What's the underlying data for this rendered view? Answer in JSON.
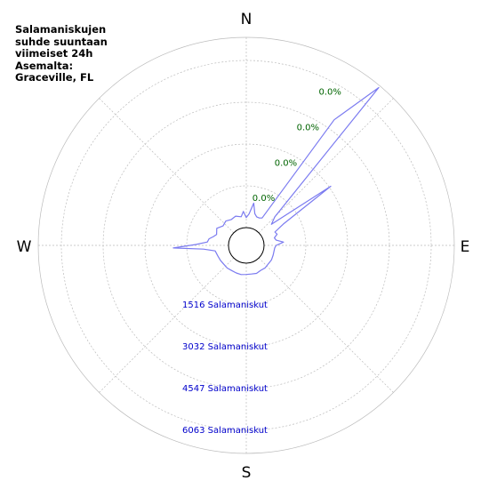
{
  "title": "Salamaniskujen\nsuhde suuntaan\nviimeiset 24h\nAsemalta:\nGraceville, FL",
  "colors": {
    "rose": "#7b7bf0",
    "percent_labels": "#006400",
    "count_labels": "#0000cc",
    "grid": "#bbbbbb"
  },
  "chart_data": {
    "type": "polar-area",
    "directions": [
      "N",
      "E",
      "S",
      "W"
    ],
    "ring_counts": [
      "1516 Salamaniskut",
      "3032 Salamaniskut",
      "4547 Salamaniskut",
      "6063 Salamaniskut"
    ],
    "ring_percents": [
      "0.0%",
      "0.0%",
      "0.0%",
      "0.0%"
    ],
    "r_max": 7579,
    "grid": true,
    "series": [
      {
        "points": [
          {
            "bearing": 0,
            "count": 400
          },
          {
            "bearing": 5,
            "count": 550
          },
          {
            "bearing": 10,
            "count": 1000
          },
          {
            "bearing": 15,
            "count": 600
          },
          {
            "bearing": 20,
            "count": 500
          },
          {
            "bearing": 25,
            "count": 500
          },
          {
            "bearing": 30,
            "count": 550
          },
          {
            "bearing": 35,
            "count": 5400
          },
          {
            "bearing": 40,
            "count": 7500
          },
          {
            "bearing": 45,
            "count": 900
          },
          {
            "bearing": 50,
            "count": 600
          },
          {
            "bearing": 55,
            "count": 3400
          },
          {
            "bearing": 60,
            "count": 1000
          },
          {
            "bearing": 65,
            "count": 550
          },
          {
            "bearing": 70,
            "count": 600
          },
          {
            "bearing": 75,
            "count": 450
          },
          {
            "bearing": 80,
            "count": 500
          },
          {
            "bearing": 85,
            "count": 780
          },
          {
            "bearing": 90,
            "count": 480
          },
          {
            "bearing": 95,
            "count": 430
          },
          {
            "bearing": 100,
            "count": 420
          },
          {
            "bearing": 110,
            "count": 430
          },
          {
            "bearing": 120,
            "count": 450
          },
          {
            "bearing": 130,
            "count": 440
          },
          {
            "bearing": 140,
            "count": 460
          },
          {
            "bearing": 150,
            "count": 440
          },
          {
            "bearing": 160,
            "count": 480
          },
          {
            "bearing": 170,
            "count": 450
          },
          {
            "bearing": 180,
            "count": 450
          },
          {
            "bearing": 190,
            "count": 470
          },
          {
            "bearing": 200,
            "count": 460
          },
          {
            "bearing": 210,
            "count": 450
          },
          {
            "bearing": 220,
            "count": 470
          },
          {
            "bearing": 230,
            "count": 460
          },
          {
            "bearing": 240,
            "count": 480
          },
          {
            "bearing": 250,
            "count": 500
          },
          {
            "bearing": 260,
            "count": 550
          },
          {
            "bearing": 265,
            "count": 1000
          },
          {
            "bearing": 268,
            "count": 2200
          },
          {
            "bearing": 271,
            "count": 1300
          },
          {
            "bearing": 275,
            "count": 850
          },
          {
            "bearing": 280,
            "count": 800
          },
          {
            "bearing": 285,
            "count": 650
          },
          {
            "bearing": 290,
            "count": 550
          },
          {
            "bearing": 300,
            "count": 650
          },
          {
            "bearing": 310,
            "count": 500
          },
          {
            "bearing": 320,
            "count": 560
          },
          {
            "bearing": 330,
            "count": 480
          },
          {
            "bearing": 340,
            "count": 530
          },
          {
            "bearing": 350,
            "count": 450
          },
          {
            "bearing": 355,
            "count": 650
          }
        ]
      }
    ]
  }
}
